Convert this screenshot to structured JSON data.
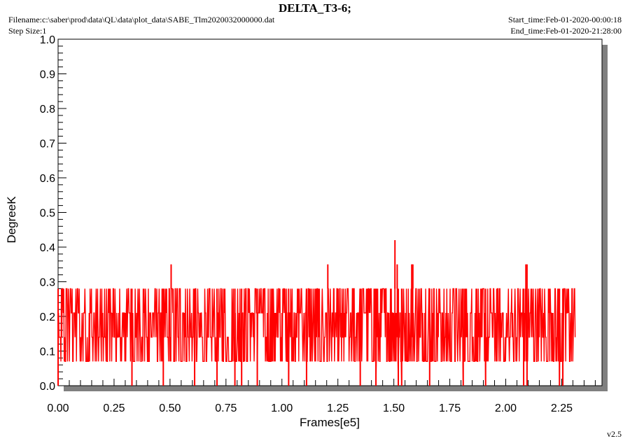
{
  "header": {
    "title": "DELTA_T3-6;",
    "filename": "Filename:c:\\saber\\prod\\data\\QL\\data\\plot_data\\SABE_Tlm2020032000000.dat",
    "step_size": "Step Size:1",
    "start_time": "Start_time:Feb-01-2020-00:00:18",
    "end_time": "End_time:Feb-01-2020-21:28:00"
  },
  "version": "v2.5",
  "chart_data": {
    "type": "line",
    "title": "DELTA_T3-6;",
    "xlabel": "Frames[e5]",
    "ylabel": "DegreeK",
    "xlim": [
      0,
      2.43
    ],
    "ylim": [
      0,
      1.0
    ],
    "x_ticks": [
      "0.00",
      "0.25",
      "0.50",
      "0.75",
      "1.00",
      "1.25",
      "1.50",
      "1.75",
      "2.00",
      "2.25"
    ],
    "y_ticks": [
      "0.0",
      "0.1",
      "0.2",
      "0.3",
      "0.4",
      "0.5",
      "0.6",
      "0.7",
      "0.8",
      "0.9",
      "1.0"
    ],
    "grid": false,
    "series": [
      {
        "color": "#ff0000",
        "x_range": [
          0,
          2.31
        ],
        "levels": [
          0.0,
          0.07,
          0.14,
          0.21,
          0.28
        ],
        "typical_range": [
          0.07,
          0.28
        ],
        "spikes": [
          {
            "x": 0.505,
            "y": 0.35
          },
          {
            "x": 1.205,
            "y": 0.35
          },
          {
            "x": 1.505,
            "y": 0.42
          },
          {
            "x": 1.515,
            "y": 0.35
          },
          {
            "x": 1.58,
            "y": 0.35
          },
          {
            "x": 1.585,
            "y": 0.35
          },
          {
            "x": 2.09,
            "y": 0.35
          },
          {
            "x": 2.095,
            "y": 0.35
          }
        ],
        "dips": [
          0.0,
          0.33,
          0.47,
          0.61,
          0.71,
          0.79,
          0.82,
          0.89,
          1.03,
          1.11,
          1.35,
          1.42,
          1.52,
          1.535,
          1.66,
          1.81,
          1.91,
          2.08,
          2.095,
          2.24,
          2.255
        ]
      }
    ]
  }
}
